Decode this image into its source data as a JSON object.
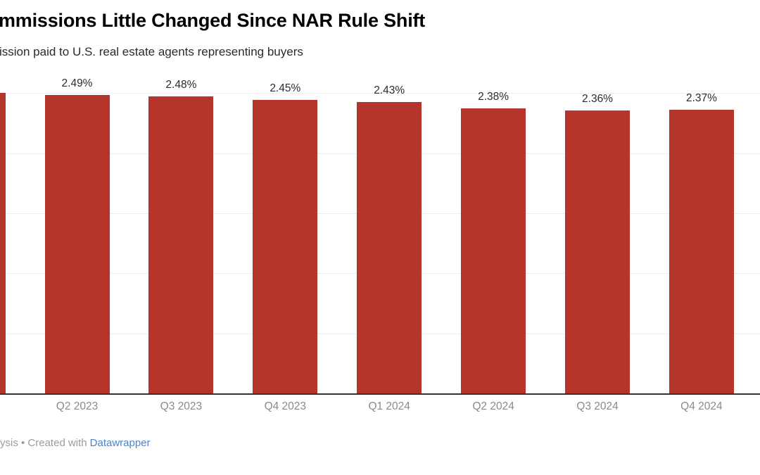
{
  "header": {
    "title": "mmissions Little Changed Since NAR Rule Shift",
    "subtitle": "ission paid to U.S. real estate agents representing buyers"
  },
  "footer": {
    "attribution_text": "ysis • Created with",
    "link_label": "Datawrapper"
  },
  "colors": {
    "bar": "#b5342c",
    "gridline": "#eeeeee",
    "baseline": "#333333",
    "title": "#000000",
    "subtitle": "#2b2b2b",
    "value_label": "#2b2b2b",
    "axis_label": "#8a8a8a",
    "footer_text": "#9b9b9b",
    "link": "#4186d4"
  },
  "chart_data": {
    "type": "bar",
    "title": "mmissions Little Changed Since NAR Rule Shift",
    "subtitle": "ission paid to U.S. real estate agents representing buyers",
    "categories": [
      "Q2 2023",
      "Q3 2023",
      "Q4 2023",
      "Q1 2024",
      "Q2 2024",
      "Q3 2024",
      "Q4 2024"
    ],
    "values": [
      2.49,
      2.48,
      2.45,
      2.43,
      2.38,
      2.36,
      2.37
    ],
    "value_labels": [
      "2.49%",
      "2.48%",
      "2.45%",
      "2.43%",
      "2.38%",
      "2.36%",
      "2.37%"
    ],
    "cropped_left_bar": {
      "estimated_value": 2.51,
      "label_visible": false
    },
    "unit": "%",
    "xlabel": "",
    "ylabel": "",
    "ylim": [
      0,
      2.59
    ],
    "gridlines_percent": [
      0.5,
      1.0,
      1.5,
      2.0,
      2.5
    ],
    "y_tick_labels_visible": false,
    "grid": true,
    "legend": "none"
  }
}
